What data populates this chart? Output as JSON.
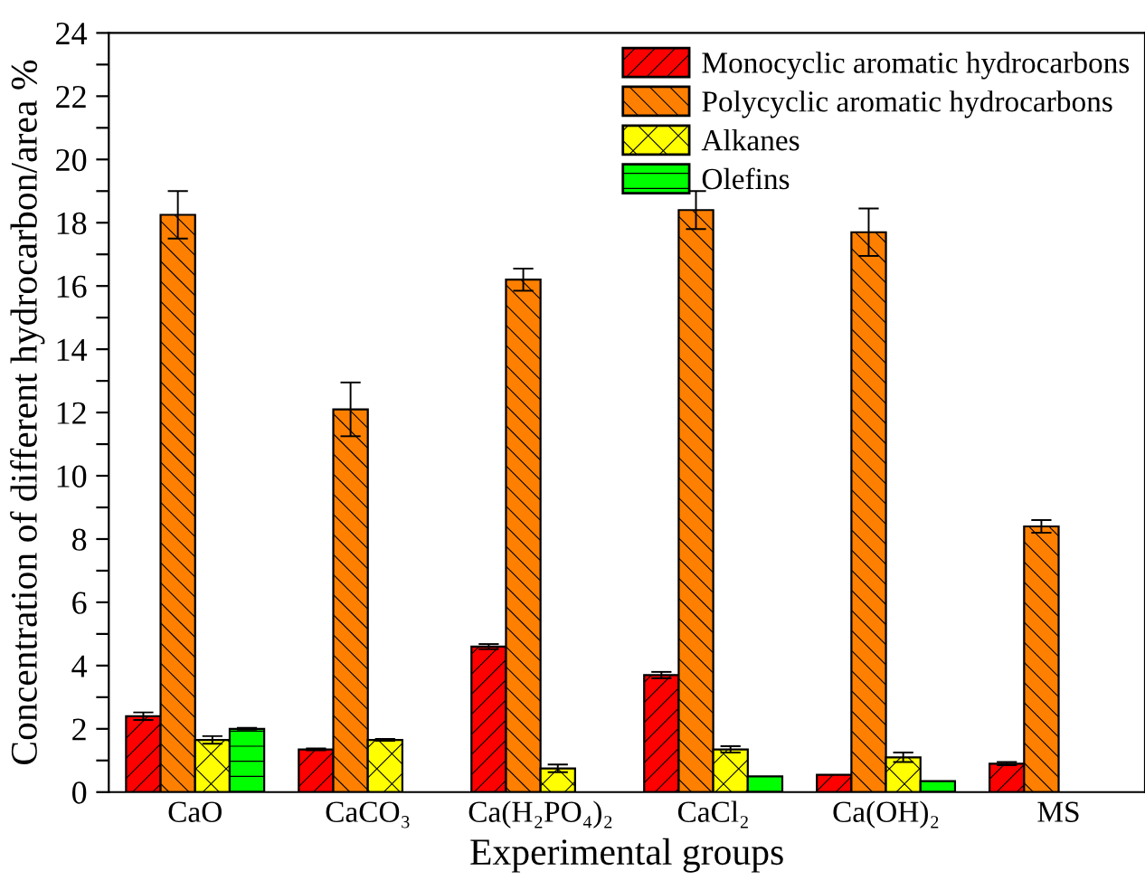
{
  "chart_data": {
    "type": "bar",
    "xlabel": "Experimental groups",
    "ylabel": "Concentration of different hydrocarbon/area %",
    "categories": [
      "CaO",
      "CaCO₃",
      "Ca(H₂PO₄)₂",
      "CaCl₂",
      "Ca(OH)₂",
      "MS"
    ],
    "series": [
      {
        "name": "Monocyclic aromatic hydrocarbons",
        "color": "#ff0000",
        "values": [
          2.4,
          1.35,
          4.6,
          3.7,
          0.55,
          0.9
        ],
        "errors": [
          0.12,
          0.03,
          0.08,
          0.1,
          null,
          0.05
        ]
      },
      {
        "name": "Polycyclic aromatic hydrocarbons",
        "color": "#ff8000",
        "values": [
          18.25,
          12.1,
          16.2,
          18.4,
          17.7,
          8.4
        ],
        "errors": [
          0.75,
          0.85,
          0.35,
          0.6,
          0.75,
          0.2
        ]
      },
      {
        "name": "Alkanes",
        "color": "#ffff00",
        "values": [
          1.65,
          1.65,
          0.75,
          1.35,
          1.1,
          null
        ],
        "errors": [
          0.12,
          0.03,
          0.12,
          0.1,
          0.15,
          null
        ]
      },
      {
        "name": "Olefins",
        "color": "#00ff00",
        "values": [
          2.0,
          null,
          null,
          0.5,
          0.35,
          null
        ],
        "errors": [
          0.03,
          null,
          null,
          null,
          null,
          null
        ]
      }
    ],
    "ylim": [
      0,
      24
    ],
    "yticks": [
      0,
      {
        "value": 1,
        "label": null
      },
      2,
      {
        "value": 3,
        "label": null
      },
      4,
      {
        "value": 5,
        "label": null
      },
      6,
      {
        "value": 7,
        "label": null
      },
      8,
      {
        "value": 9,
        "label": null
      },
      10,
      {
        "value": 11,
        "label": null
      },
      12,
      {
        "value": 13,
        "label": null
      },
      14,
      {
        "value": 15,
        "label": null
      },
      16,
      {
        "value": 17,
        "label": null
      },
      18,
      {
        "value": 19,
        "label": null
      },
      20,
      {
        "value": 21,
        "label": null
      },
      22,
      {
        "value": 23,
        "label": null
      },
      24
    ],
    "legend": "top right",
    "grid": false
  }
}
